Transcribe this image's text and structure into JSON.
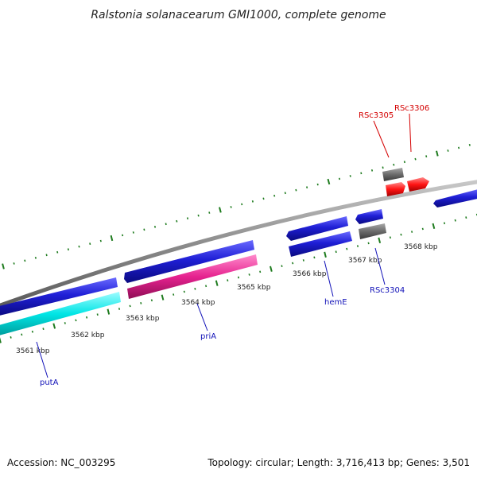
{
  "title": "Ralstonia solanacearum GMI1000, complete genome",
  "footer": {
    "accession": "Accession: NC_003295",
    "topology": "Topology: circular; Length: 3,716,413 bp; Genes: 3,501"
  },
  "colors": {
    "backbone": "#8c8c8c",
    "tick": "#1e7b1e",
    "blue_gene": "#1f1fd6",
    "cyan_gene": "#00e5e5",
    "magenta_gene": "#e6228f",
    "grey_gene": "#6b6b6b",
    "red_gene": "#ff1414",
    "label_blue": "#1212b8",
    "label_red": "#d40000"
  },
  "kbp_labels": [
    "3561 kbp",
    "3562 kbp",
    "3563 kbp",
    "3564 kbp",
    "3565 kbp",
    "3566 kbp",
    "3567 kbp",
    "3568 kbp"
  ],
  "gene_labels": {
    "putA": "putA",
    "priA": "priA",
    "hemE": "hemE",
    "RSc3304": "RSc3304",
    "RSc3305": "RSc3305",
    "RSc3306": "RSc3306"
  }
}
